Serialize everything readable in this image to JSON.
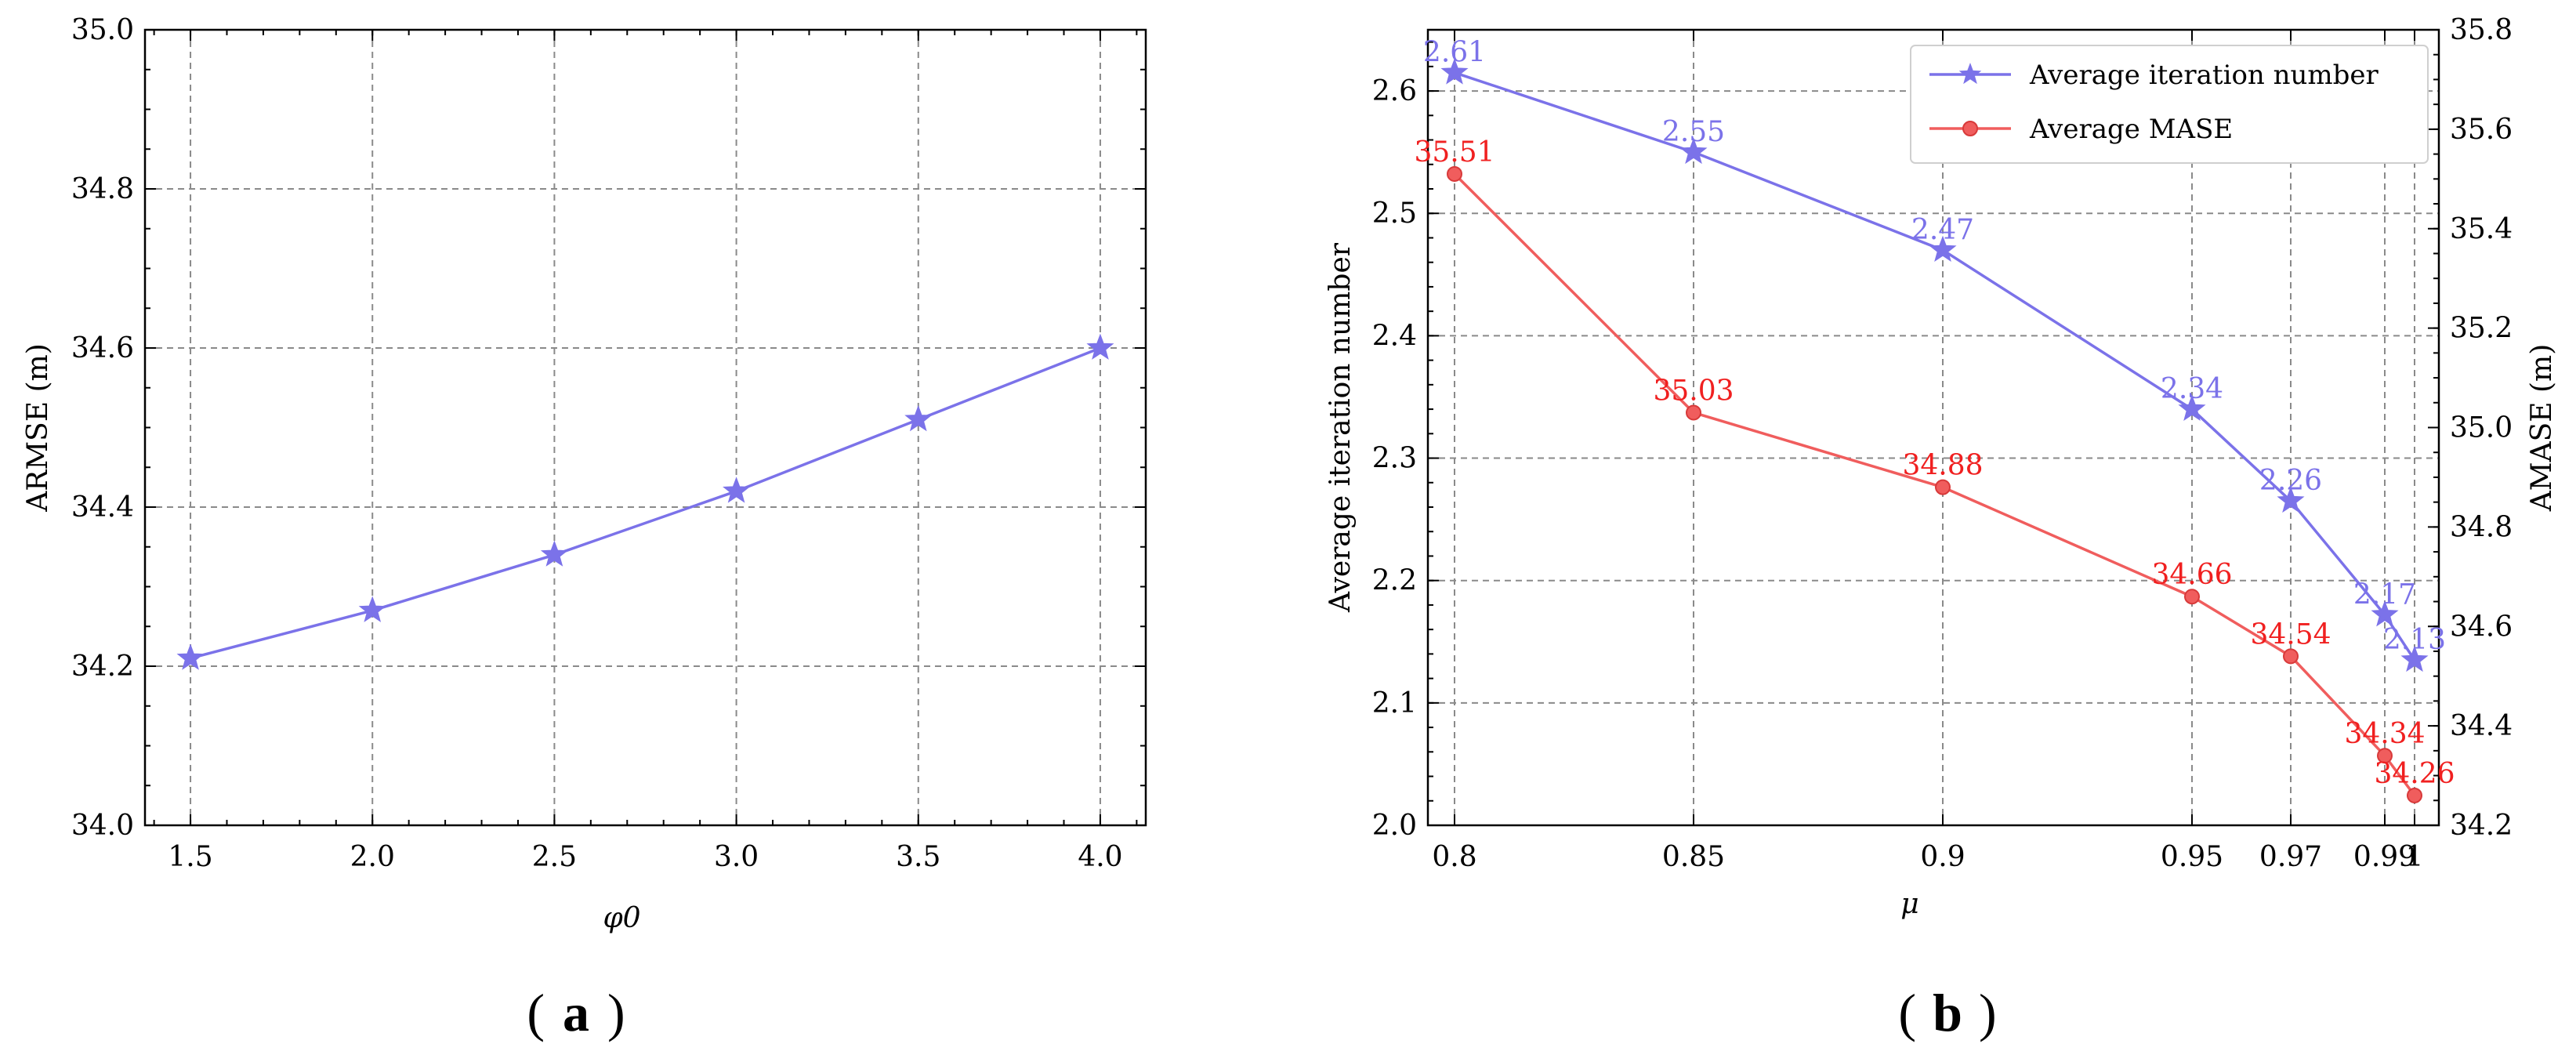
{
  "colors": {
    "iter": "#7b72e9",
    "mase": "#f05d5d",
    "grid": "#8a8a8a"
  },
  "panels": {
    "a": {
      "label": "a"
    },
    "b": {
      "label": "b"
    }
  },
  "chart_data": [
    {
      "type": "line",
      "xlabel": "φ0",
      "ylabel": "ARMSE (m)",
      "xlim": [
        1.375,
        4.125
      ],
      "ylim": [
        34.0,
        35.0
      ],
      "x_ticks": [
        "1.5",
        "2.0",
        "2.5",
        "3.0",
        "3.5",
        "4.0"
      ],
      "x_tick_values": [
        1.5,
        2.0,
        2.5,
        3.0,
        3.5,
        4.0
      ],
      "y_ticks": [
        "34.0",
        "34.2",
        "34.4",
        "34.6",
        "34.8",
        "35.0"
      ],
      "y_tick_values": [
        34.0,
        34.2,
        34.4,
        34.6,
        34.8,
        35.0
      ],
      "grid": true,
      "series": [
        {
          "marker": "star",
          "color": "#7b72e9",
          "x": [
            1.5,
            2.0,
            2.5,
            3.0,
            3.5,
            4.0
          ],
          "y": [
            34.21,
            34.27,
            34.34,
            34.42,
            34.51,
            34.6
          ]
        }
      ]
    },
    {
      "type": "line",
      "xlabel": "μ",
      "ylabel": "Average iteration number",
      "y2label": "AMASE (m)",
      "x_ticks": [
        "0.8",
        "0.85",
        "0.9",
        "0.95",
        "0.97",
        "0.99",
        "1"
      ],
      "ylim": [
        2.0,
        2.65
      ],
      "y_ticks": [
        "2.0",
        "2.1",
        "2.2",
        "2.3",
        "2.4",
        "2.5",
        "2.6"
      ],
      "y_tick_values": [
        2.0,
        2.1,
        2.2,
        2.3,
        2.4,
        2.5,
        2.6
      ],
      "y2lim": [
        34.2,
        35.8
      ],
      "y2_ticks": [
        "34.2",
        "34.4",
        "34.6",
        "34.8",
        "35.0",
        "35.2",
        "35.4",
        "35.6",
        "35.8"
      ],
      "y2_tick_values": [
        34.2,
        34.4,
        34.6,
        34.8,
        35.0,
        35.2,
        35.4,
        35.6,
        35.8
      ],
      "grid": true,
      "legend": "top-right",
      "series": [
        {
          "name": "Average iteration number",
          "axis": "left",
          "marker": "star",
          "color": "#7b72e9",
          "x": [
            "0.8",
            "0.85",
            "0.9",
            "0.95",
            "0.97",
            "0.99",
            "1"
          ],
          "y": [
            2.615,
            2.55,
            2.47,
            2.34,
            2.265,
            2.172,
            2.135
          ],
          "labels": [
            "2.61",
            "2.55",
            "2.47",
            "2.34",
            "2.26",
            "2.17",
            "2.13"
          ]
        },
        {
          "name": "Average MASE",
          "axis": "right",
          "marker": "circle",
          "color": "#f05d5d",
          "x": [
            "0.8",
            "0.85",
            "0.9",
            "0.95",
            "0.97",
            "0.99",
            "1"
          ],
          "y": [
            35.51,
            35.03,
            34.88,
            34.66,
            34.54,
            34.34,
            34.26
          ],
          "labels": [
            "35.51",
            "35.03",
            "34.88",
            "34.66",
            "34.54",
            "34.34",
            "34.26"
          ]
        }
      ]
    }
  ]
}
